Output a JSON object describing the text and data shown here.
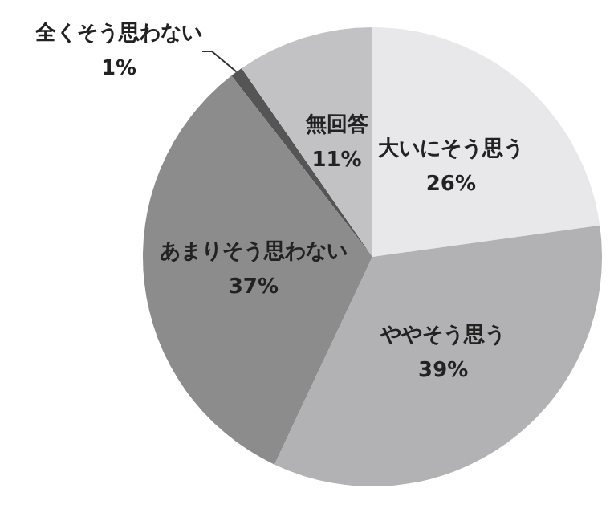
{
  "chart_data": {
    "type": "pie",
    "categories": [
      "大いにそう思う",
      "ややそう思う",
      "あまりそう思わない",
      "全くそう思わない",
      "無回答"
    ],
    "values": [
      26,
      39,
      37,
      1,
      11
    ],
    "colors": [
      "#e8e8ea",
      "#b2b2b4",
      "#8c8c8c",
      "#555555",
      "#c2c2c4"
    ],
    "value_labels": [
      "26%",
      "39%",
      "37%",
      "1%",
      "11%"
    ]
  }
}
